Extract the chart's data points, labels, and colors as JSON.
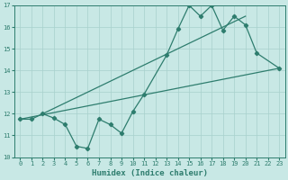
{
  "line1_x": [
    0,
    1,
    2,
    3,
    4,
    5,
    6,
    7,
    8,
    9,
    10,
    11,
    13,
    14,
    15,
    16,
    17,
    18,
    19,
    20,
    21,
    23
  ],
  "line1_y": [
    11.75,
    11.75,
    12.0,
    11.8,
    11.5,
    10.5,
    10.4,
    11.75,
    11.5,
    11.1,
    12.1,
    12.9,
    14.7,
    15.9,
    17.0,
    16.5,
    17.0,
    15.85,
    16.5,
    16.1,
    14.8,
    14.1
  ],
  "line2_x": [
    0,
    23
  ],
  "line2_y": [
    11.75,
    14.1
  ],
  "line3_x": [
    2,
    20
  ],
  "line3_y": [
    12.0,
    16.5
  ],
  "line_color": "#2e7d6e",
  "bg_color": "#c8e8e5",
  "grid_color": "#a8d0cc",
  "xlabel": "Humidex (Indice chaleur)",
  "xlim": [
    -0.5,
    23.5
  ],
  "ylim": [
    10,
    17
  ],
  "xticks": [
    0,
    1,
    2,
    3,
    4,
    5,
    6,
    7,
    8,
    9,
    10,
    11,
    12,
    13,
    14,
    15,
    16,
    17,
    18,
    19,
    20,
    21,
    22,
    23
  ],
  "yticks": [
    10,
    11,
    12,
    13,
    14,
    15,
    16,
    17
  ]
}
